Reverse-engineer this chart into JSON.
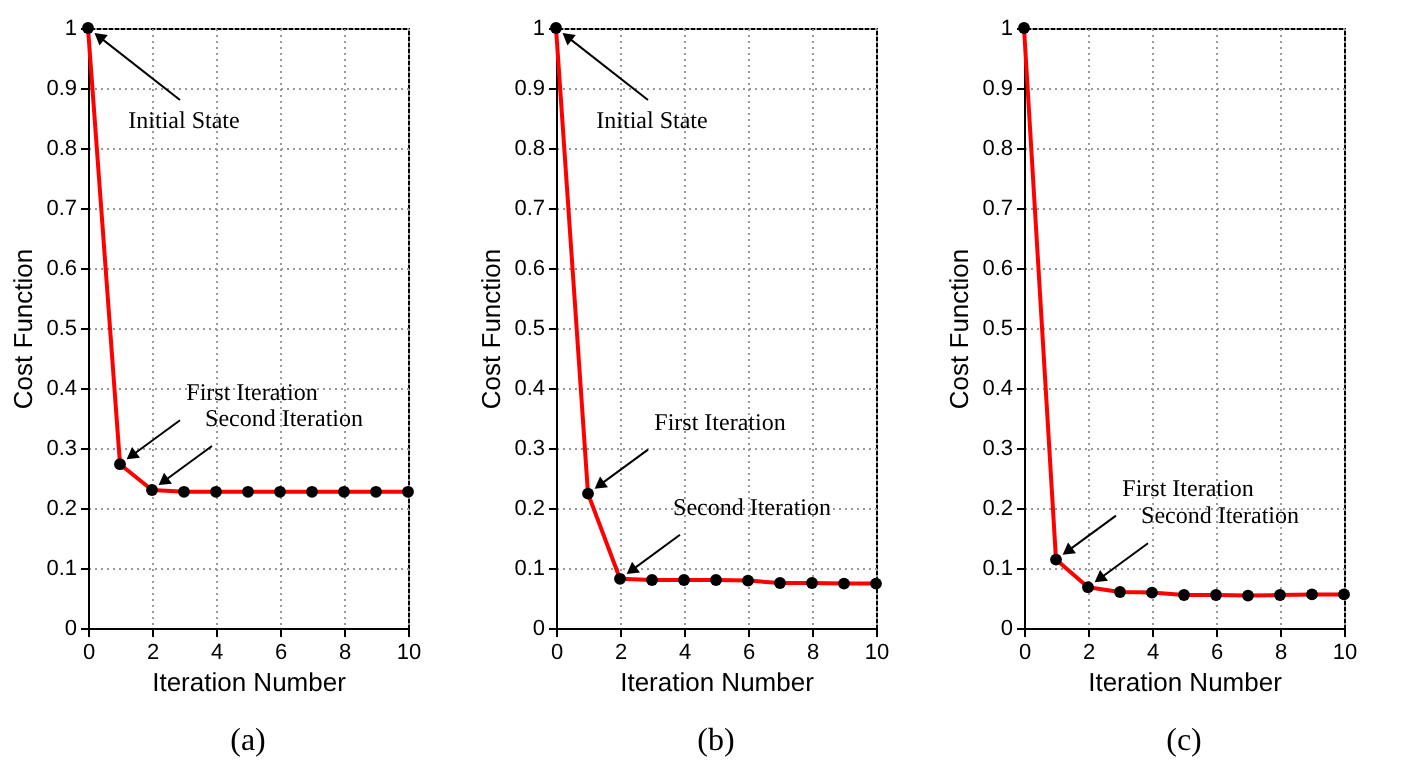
{
  "chart_data": [
    {
      "type": "line",
      "xlabel": "Iteration Number",
      "ylabel": "Cost Function",
      "x": [
        0,
        1,
        2,
        3,
        4,
        5,
        6,
        7,
        8,
        9,
        10
      ],
      "series": [
        {
          "color": "#ff0000",
          "values": [
            1,
            0.273,
            0.23,
            0.227,
            0.227,
            0.227,
            0.227,
            0.227,
            0.227,
            0.227,
            0.227
          ]
        }
      ],
      "xlim": [
        0,
        10
      ],
      "xticks": [
        0,
        2,
        4,
        6,
        8,
        10
      ],
      "ylim": [
        0,
        1
      ],
      "yticks": [
        0,
        0.1,
        0.2,
        0.3,
        0.4,
        0.5,
        0.6,
        0.7,
        0.8,
        0.9,
        1
      ],
      "grid": true,
      "marker": "circle",
      "line_style": "solid",
      "annotations": [
        {
          "text": "Initial State",
          "x": 0,
          "y": 1
        },
        {
          "text": "First Iteration",
          "x": 1,
          "y": 0.273
        },
        {
          "text": "Second Iteration",
          "x": 2,
          "y": 0.23
        },
        "(a)"
      ]
    },
    {
      "type": "line",
      "xlabel": "Iteration Number",
      "ylabel": "Cost Function",
      "x": [
        0,
        1,
        2,
        3,
        4,
        5,
        6,
        7,
        8,
        9,
        10
      ],
      "series": [
        {
          "color": "#ff0000",
          "values": [
            1,
            0.224,
            0.082,
            0.08,
            0.08,
            0.08,
            0.079,
            0.075,
            0.075,
            0.074,
            0.074
          ]
        }
      ],
      "xlim": [
        0,
        10
      ],
      "xticks": [
        0,
        2,
        4,
        6,
        8,
        10
      ],
      "ylim": [
        0,
        1
      ],
      "yticks": [
        0,
        0.1,
        0.2,
        0.3,
        0.4,
        0.5,
        0.6,
        0.7,
        0.8,
        0.9,
        1
      ],
      "grid": true,
      "marker": "circle",
      "line_style": "solid",
      "annotations": [
        {
          "text": "Initial State",
          "x": 0,
          "y": 1
        },
        {
          "text": "First Iteration",
          "x": 1,
          "y": 0.224
        },
        {
          "text": "Second Iteration",
          "x": 2,
          "y": 0.082
        },
        "(b)"
      ]
    },
    {
      "type": "line",
      "xlabel": "Iteration Number",
      "ylabel": "Cost Function",
      "x": [
        0,
        1,
        2,
        3,
        4,
        5,
        6,
        7,
        8,
        9,
        10
      ],
      "series": [
        {
          "color": "#ff0000",
          "values": [
            1,
            0.114,
            0.068,
            0.06,
            0.059,
            0.055,
            0.055,
            0.054,
            0.055,
            0.056,
            0.056
          ]
        }
      ],
      "xlim": [
        0,
        10
      ],
      "xticks": [
        0,
        2,
        4,
        6,
        8,
        10
      ],
      "ylim": [
        0,
        1
      ],
      "yticks": [
        0,
        0.1,
        0.2,
        0.3,
        0.4,
        0.5,
        0.6,
        0.7,
        0.8,
        0.9,
        1
      ],
      "grid": true,
      "marker": "circle",
      "line_style": "solid",
      "annotations": [
        {
          "text": "First Iteration",
          "x": 1,
          "y": 0.114
        },
        {
          "text": "Second Iteration",
          "x": 2,
          "y": 0.068
        },
        "(c)"
      ]
    }
  ]
}
